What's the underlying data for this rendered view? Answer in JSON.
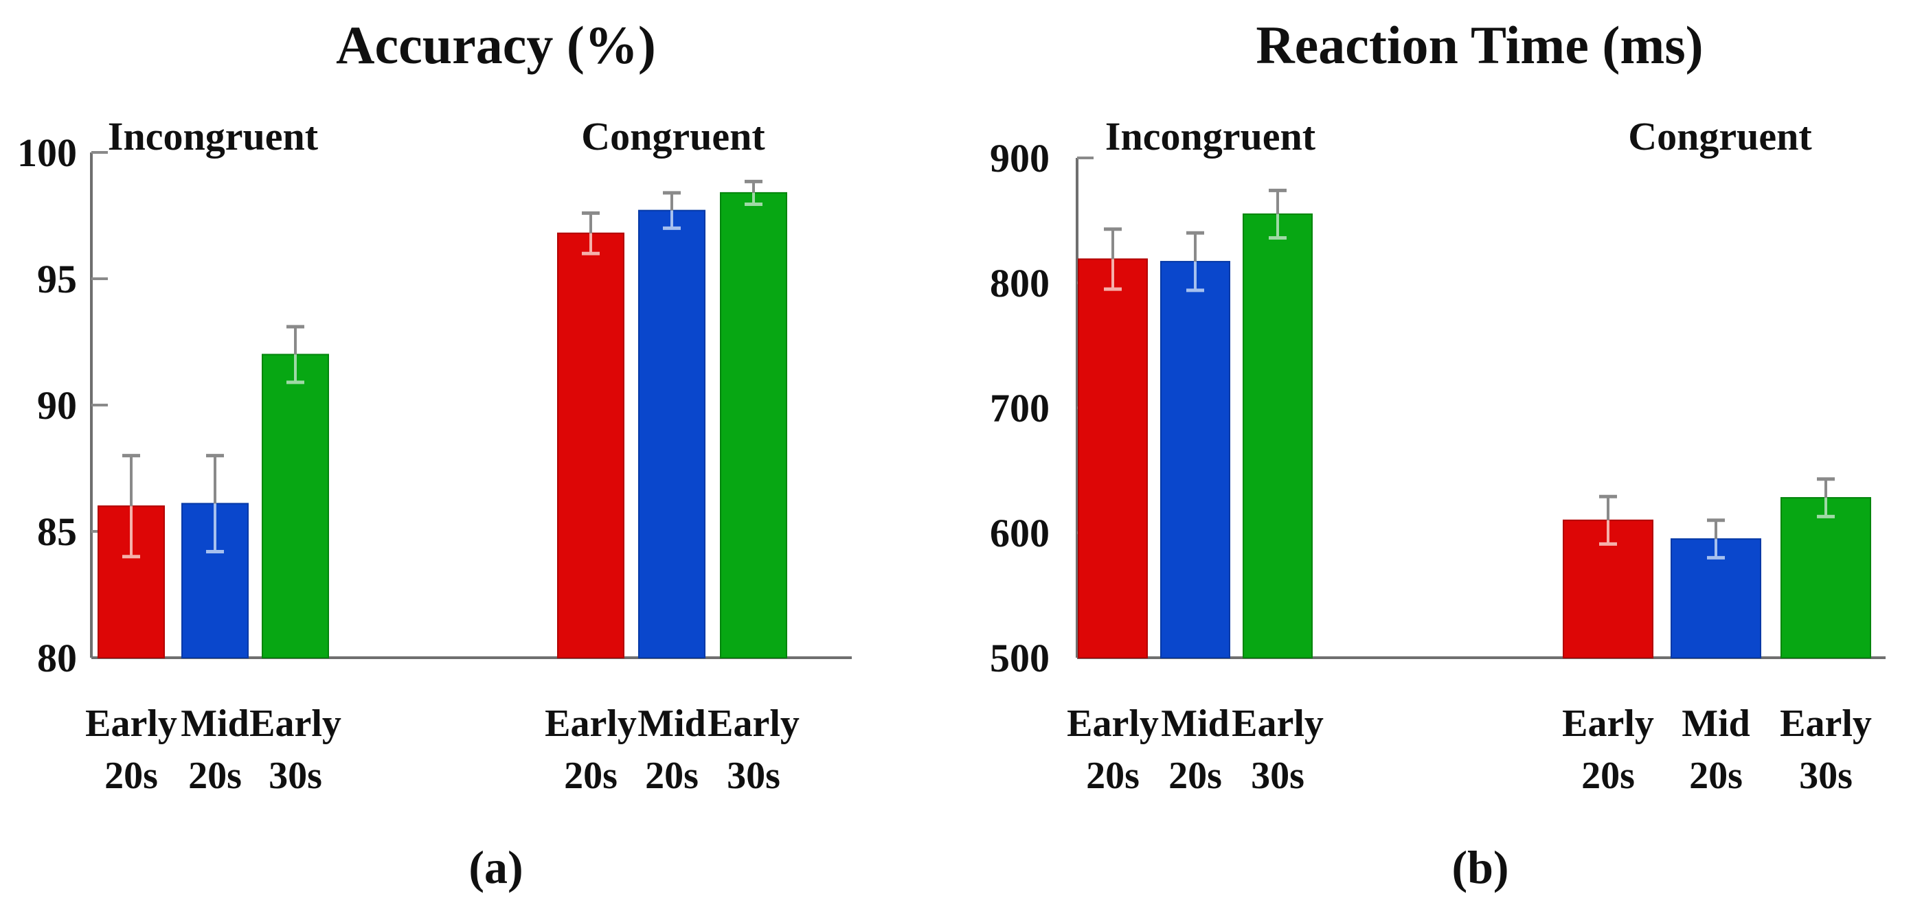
{
  "page": {
    "background": "#ffffff"
  },
  "colors": {
    "axis": "#6f6f6f",
    "tick": "#8a8a8a",
    "error_upper": "#8a8a8a",
    "text": "#101010",
    "bar_red": "#dd0606",
    "bar_blue": "#0a47cc",
    "bar_green": "#07a713"
  },
  "chart_data": [
    {
      "id": "accuracy",
      "type": "bar",
      "title": "Accuracy (%)",
      "caption": "(a)",
      "xlabel": "",
      "ylabel": "",
      "ylim": [
        80,
        100
      ],
      "yticks": [
        100,
        95,
        90,
        85,
        80
      ],
      "grid": "off",
      "legend": "none",
      "group_labels": [
        "Incongruent",
        "Congruent"
      ],
      "categories": [
        {
          "line1": "Early",
          "line2": "20s"
        },
        {
          "line1": "Mid",
          "line2": "20s"
        },
        {
          "line1": "Early",
          "line2": "30s"
        }
      ],
      "series": [
        {
          "group": "Incongruent",
          "values": [
            86.0,
            86.1,
            92.0
          ],
          "errors": [
            2.0,
            1.9,
            1.1
          ]
        },
        {
          "group": "Congruent",
          "values": [
            96.8,
            97.7,
            98.4
          ],
          "errors": [
            0.8,
            0.7,
            0.45
          ]
        }
      ],
      "bar_colors": [
        "#dd0606",
        "#0a47cc",
        "#07a713"
      ],
      "bar_strokes": [
        "#b20404",
        "#0639a6",
        "#03850c"
      ],
      "error_tints": [
        "#f5b0aa",
        "#a6c0ee",
        "#9fd9a6"
      ]
    },
    {
      "id": "reaction-time",
      "type": "bar",
      "title": "Reaction Time (ms)",
      "caption": "(b)",
      "xlabel": "",
      "ylabel": "",
      "ylim": [
        500,
        900
      ],
      "yticks": [
        900,
        800,
        700,
        600,
        500
      ],
      "grid": "off",
      "legend": "none",
      "group_labels": [
        "Incongruent",
        "Congruent"
      ],
      "categories": [
        {
          "line1": "Early",
          "line2": "20s"
        },
        {
          "line1": "Mid",
          "line2": "20s"
        },
        {
          "line1": "Early",
          "line2": "30s"
        }
      ],
      "series": [
        {
          "group": "Incongruent",
          "values": [
            819,
            817,
            855
          ],
          "errors": [
            24,
            23,
            19
          ]
        },
        {
          "group": "Congruent",
          "values": [
            610,
            595,
            628
          ],
          "errors": [
            19,
            15,
            15
          ]
        }
      ],
      "bar_colors": [
        "#dd0606",
        "#0a47cc",
        "#07a713"
      ],
      "bar_strokes": [
        "#b20404",
        "#0639a6",
        "#03850c"
      ],
      "error_tints": [
        "#f5b0aa",
        "#a6c0ee",
        "#9fd9a6"
      ]
    }
  ]
}
